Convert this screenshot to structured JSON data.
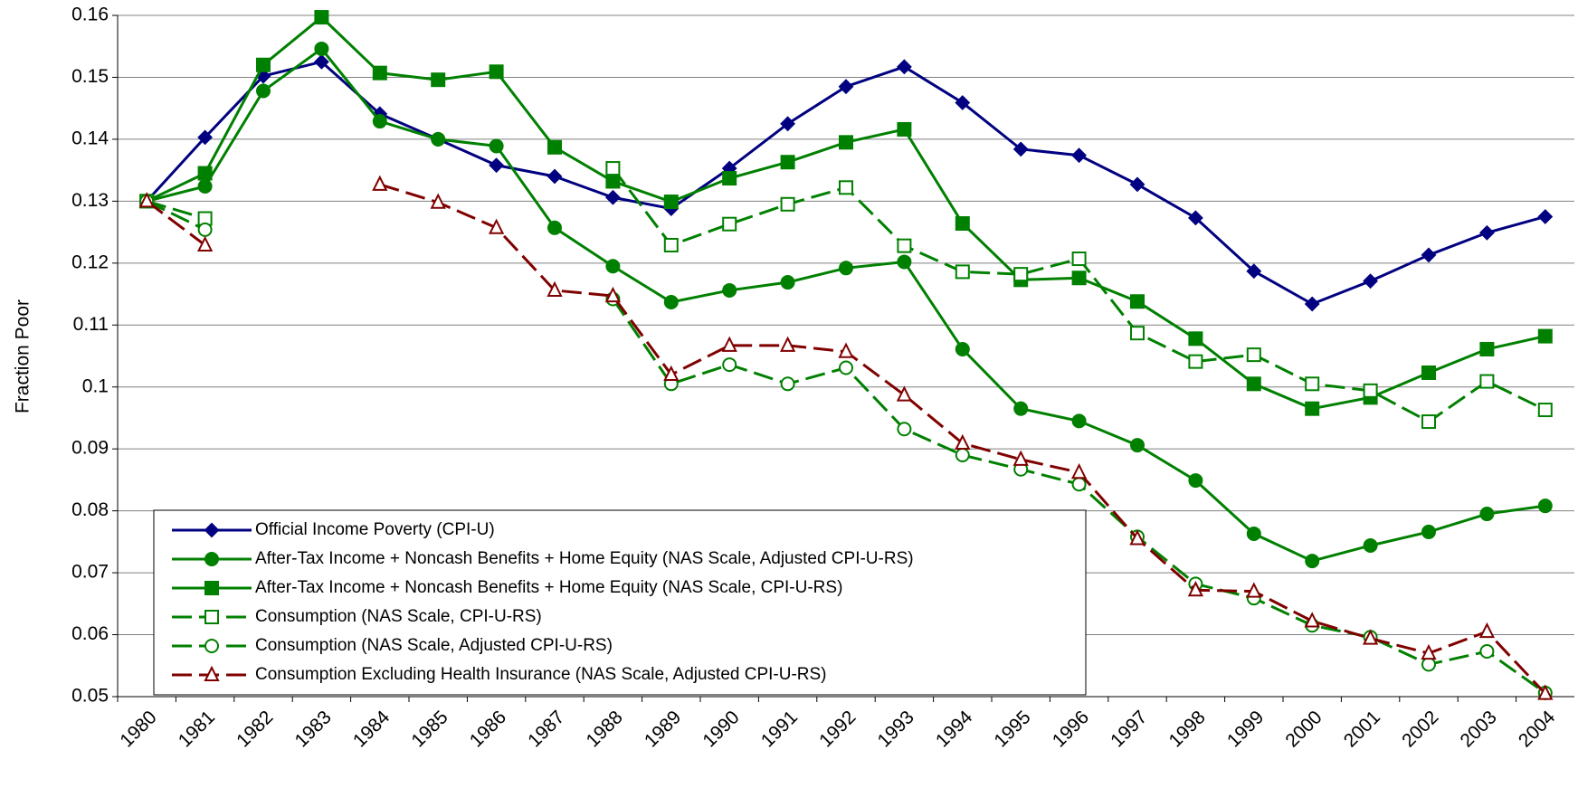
{
  "chart_data": {
    "type": "line",
    "y_label": "Fraction Poor",
    "categories": [
      "1980",
      "1981",
      "1982",
      "1983",
      "1984",
      "1985",
      "1986",
      "1987",
      "1988",
      "1989",
      "1990",
      "1991",
      "1992",
      "1993",
      "1994",
      "1995",
      "1996",
      "1997",
      "1998",
      "1999",
      "2000",
      "2001",
      "2002",
      "2003",
      "2004"
    ],
    "ylim": [
      0.05,
      0.16
    ],
    "yticks": [
      0.05,
      0.06,
      0.07,
      0.08,
      0.09,
      0.1,
      0.11,
      0.12,
      0.13,
      0.14,
      0.15,
      0.16
    ],
    "grid": true,
    "legend": "lower left",
    "series": [
      {
        "name": "Official Income Poverty (CPI-U)",
        "color": "#000080",
        "marker": "diamond",
        "dashed": false,
        "values": [
          0.13,
          0.1403,
          0.1502,
          0.1525,
          0.1441,
          0.14,
          0.1358,
          0.134,
          0.1306,
          0.1288,
          0.1353,
          0.1425,
          0.1485,
          0.1517,
          0.1459,
          0.1384,
          0.1374,
          0.1327,
          0.1273,
          0.1187,
          0.1134,
          0.1171,
          0.1213,
          0.1249,
          0.1275
        ]
      },
      {
        "name": "After-Tax Income + Noncash Benefits + Home Equity (NAS Scale, Adjusted CPI-U-RS)",
        "color": "#008000",
        "marker": "circle",
        "dashed": false,
        "values": [
          0.13,
          0.1324,
          0.1478,
          0.1546,
          0.1429,
          0.14,
          0.1389,
          0.1257,
          0.1195,
          0.1137,
          0.1156,
          0.1169,
          0.1192,
          0.1202,
          0.1061,
          0.0965,
          0.0945,
          0.0906,
          0.0849,
          0.0763,
          0.0719,
          0.0744,
          0.0766,
          0.0795,
          0.0808
        ]
      },
      {
        "name": "After-Tax Income + Noncash Benefits + Home Equity (NAS Scale, CPI-U-RS)",
        "color": "#008000",
        "marker": "square",
        "dashed": false,
        "values": [
          0.13,
          0.1345,
          0.152,
          0.1597,
          0.1507,
          0.1496,
          0.1509,
          0.1387,
          0.1332,
          0.1299,
          0.1337,
          0.1363,
          0.1395,
          0.1416,
          0.1264,
          0.1173,
          0.1176,
          0.1138,
          0.1078,
          0.1005,
          0.0965,
          0.0983,
          0.1023,
          0.1061,
          0.1082
        ]
      },
      {
        "name": "Consumption (NAS Scale, CPI-U-RS)",
        "color": "#008000",
        "marker": "open-square",
        "dashed": true,
        "values": [
          0.13,
          0.1272,
          null,
          null,
          null,
          null,
          null,
          null,
          0.1353,
          0.1229,
          0.1263,
          0.1295,
          0.1322,
          0.1228,
          0.1186,
          0.1182,
          0.1207,
          0.1087,
          0.1041,
          0.1052,
          0.1005,
          0.0994,
          0.0944,
          0.1009,
          0.0963
        ]
      },
      {
        "name": "Consumption (NAS Scale, Adjusted CPI-U-RS)",
        "color": "#008000",
        "marker": "open-circle",
        "dashed": true,
        "values": [
          0.13,
          0.1254,
          null,
          null,
          null,
          null,
          null,
          null,
          0.1142,
          0.1005,
          0.1036,
          0.1005,
          0.1031,
          0.0932,
          0.089,
          0.0867,
          0.0843,
          0.0758,
          0.0682,
          0.0659,
          0.0615,
          0.0596,
          0.0552,
          0.0573,
          0.0506
        ]
      },
      {
        "name": "Consumption Excluding Health Insurance (NAS Scale, Adjusted CPI-U-RS)",
        "color": "#800000",
        "marker": "open-triangle",
        "dashed": true,
        "values": [
          0.13,
          0.1229,
          null,
          null,
          0.1327,
          0.1298,
          0.1257,
          0.1156,
          0.1147,
          0.102,
          0.1067,
          0.1067,
          0.1057,
          0.0987,
          0.0909,
          0.0883,
          0.0862,
          0.0755,
          0.0672,
          0.067,
          0.0622,
          0.0594,
          0.057,
          0.0605,
          0.0505
        ]
      }
    ]
  }
}
